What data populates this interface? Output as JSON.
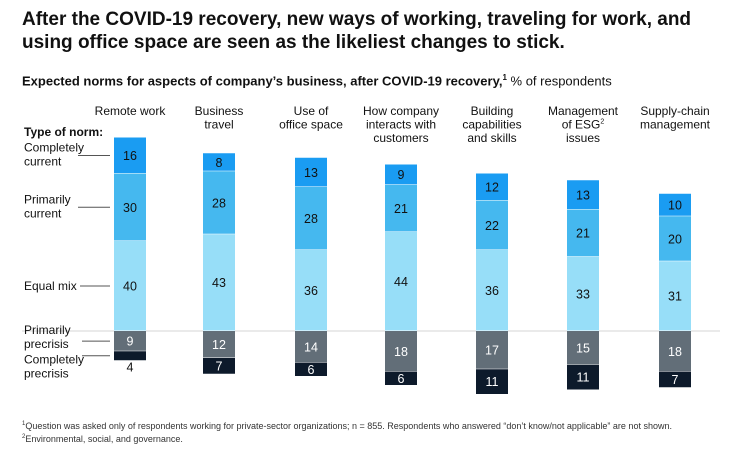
{
  "headline": "After the COVID-19 recovery, new ways of working, traveling for work, and using office space are seen as the likeliest changes to stick.",
  "subtitle": {
    "main": "Expected norms for aspects of company’s business, after COVID-19 recovery,",
    "footnote_marker": "1",
    "unit": " % of respondents"
  },
  "colors": {
    "completely_current": "#1a9cf2",
    "primarily_current": "#45b8ef",
    "equal_mix": "#97def8",
    "primarily_precrisis": "#626e78",
    "completely_precrisis": "#0d1a2b"
  },
  "chart_data": {
    "type": "bar",
    "stacked": true,
    "legend_title": "Type of norm:",
    "legend_placement": "left",
    "categories": [
      [
        "Remote work"
      ],
      [
        "Business",
        "travel"
      ],
      [
        "Use of",
        "office space"
      ],
      [
        "How company",
        "interacts with",
        "customers"
      ],
      [
        "Building",
        "capabilities",
        "and skills"
      ],
      [
        "Management",
        "of ESG",
        "issues"
      ],
      [
        "Supply-chain",
        "management"
      ]
    ],
    "category_superscripts": [
      "",
      "",
      "",
      "",
      "",
      "2",
      ""
    ],
    "series": [
      {
        "name": [
          "Completely",
          "current"
        ],
        "values": [
          16,
          8,
          13,
          9,
          12,
          13,
          10
        ]
      },
      {
        "name": [
          "Primarily",
          "current"
        ],
        "values": [
          30,
          28,
          28,
          21,
          22,
          21,
          20
        ]
      },
      {
        "name": [
          "Equal mix"
        ],
        "values": [
          40,
          43,
          36,
          44,
          36,
          33,
          31
        ]
      },
      {
        "name": [
          "Primarily",
          "precrisis"
        ],
        "values": [
          9,
          12,
          14,
          18,
          17,
          15,
          18
        ]
      },
      {
        "name": [
          "Completely",
          "precrisis"
        ],
        "values": [
          4,
          7,
          6,
          6,
          11,
          11,
          7
        ]
      }
    ]
  },
  "footnotes": [
    {
      "marker": "1",
      "text": "Question was asked only of respondents working for private-sector organizations; n = 855. Respondents who answered “don’t know/not applicable” are not shown."
    },
    {
      "marker": "2",
      "text": "Environmental, social, and governance."
    }
  ]
}
